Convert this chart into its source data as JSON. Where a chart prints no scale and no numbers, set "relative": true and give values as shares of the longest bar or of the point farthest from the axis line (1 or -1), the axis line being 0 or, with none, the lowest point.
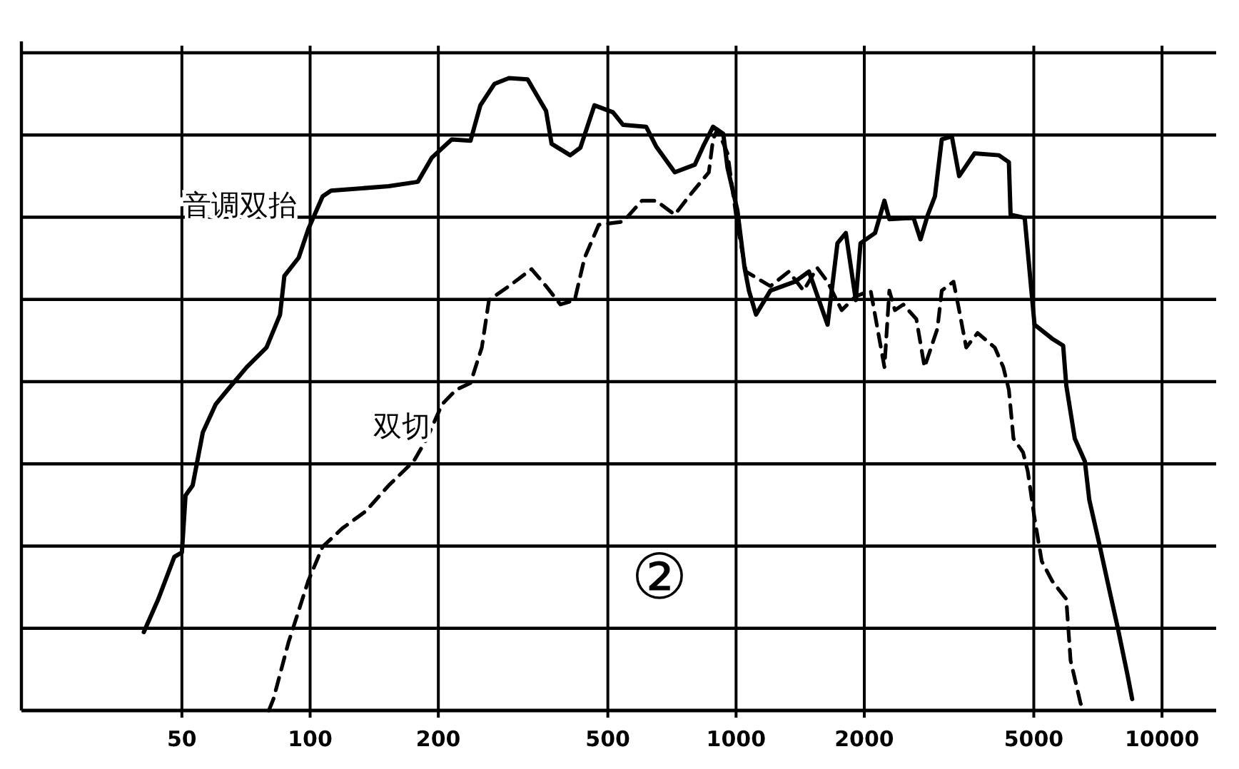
{
  "chart_data": {
    "type": "line",
    "log": "x",
    "relative": true,
    "grid": true,
    "legend": false,
    "xlim": [
      21,
      13400
    ],
    "xticks": [
      50,
      100,
      200,
      500,
      1000,
      2000,
      5000,
      10000
    ],
    "annotations": [
      "②"
    ],
    "series": [
      {
        "name": "音调双抬",
        "color": "#000000",
        "line_style": "solid",
        "x": [
          40.7,
          44,
          48,
          50,
          51,
          53,
          56,
          60,
          64,
          71,
          79,
          85,
          87,
          94,
          99,
          107,
          112,
          153,
          179,
          193,
          215,
          238,
          251,
          271,
          293,
          324,
          342,
          358,
          369,
          408,
          431,
          465,
          514,
          543,
          615,
          649,
          718,
          800,
          837,
          883,
          933,
          955,
          1007,
          1047,
          1072,
          1114,
          1204,
          1374,
          1483,
          1640,
          1730,
          1810,
          1910,
          1960,
          2120,
          2230,
          2290,
          2610,
          2710,
          2820,
          2930,
          3040,
          3210,
          3340,
          3630,
          4140,
          4370,
          4410,
          4760,
          5020,
          5520,
          5860,
          5960,
          6240,
          6590,
          6750,
          7110,
          7520,
          7870,
          8300,
          8510
        ],
        "values": [
          0.124,
          0.176,
          0.243,
          0.25,
          0.34,
          0.356,
          0.44,
          0.484,
          0.507,
          0.543,
          0.574,
          0.626,
          0.687,
          0.716,
          0.761,
          0.813,
          0.822,
          0.829,
          0.836,
          0.874,
          0.903,
          0.901,
          0.957,
          0.991,
          1.0,
          0.998,
          0.971,
          0.948,
          0.896,
          0.878,
          0.89,
          0.957,
          0.946,
          0.926,
          0.923,
          0.892,
          0.851,
          0.863,
          0.892,
          0.923,
          0.912,
          0.858,
          0.791,
          0.7,
          0.664,
          0.626,
          0.664,
          0.678,
          0.694,
          0.61,
          0.739,
          0.755,
          0.649,
          0.739,
          0.755,
          0.806,
          0.777,
          0.779,
          0.745,
          0.784,
          0.813,
          0.903,
          0.908,
          0.845,
          0.881,
          0.878,
          0.867,
          0.784,
          0.779,
          0.61,
          0.588,
          0.577,
          0.514,
          0.43,
          0.394,
          0.333,
          0.266,
          0.191,
          0.131,
          0.056,
          0.018
        ]
      },
      {
        "name": "双切",
        "color": "#000000",
        "line_style": "dashed",
        "x": [
          80,
          82,
          89,
          99,
          107,
          119,
          135,
          153,
          175,
          188,
          204,
          220,
          238,
          253,
          263,
          293,
          331,
          358,
          387,
          418,
          441,
          476,
          543,
          601,
          649,
          718,
          775,
          863,
          883,
          904,
          955,
          1007,
          1055,
          1204,
          1330,
          1440,
          1550,
          1640,
          1770,
          1910,
          2070,
          2230,
          2290,
          2360,
          2470,
          2650,
          2770,
          2970,
          3040,
          3240,
          3340,
          3470,
          3690,
          4050,
          4240,
          4370,
          4480,
          4720,
          4840,
          5020,
          5220,
          5520,
          5960,
          6100,
          6440,
          6590
        ],
        "values": [
          0,
          0.018,
          0.108,
          0.205,
          0.259,
          0.288,
          0.315,
          0.356,
          0.394,
          0.43,
          0.484,
          0.507,
          0.518,
          0.574,
          0.649,
          0.671,
          0.698,
          0.671,
          0.642,
          0.649,
          0.716,
          0.768,
          0.773,
          0.806,
          0.806,
          0.784,
          0.813,
          0.851,
          0.903,
          0.919,
          0.881,
          0.768,
          0.694,
          0.671,
          0.694,
          0.664,
          0.7,
          0.678,
          0.633,
          0.655,
          0.664,
          0.543,
          0.664,
          0.633,
          0.642,
          0.619,
          0.543,
          0.604,
          0.664,
          0.678,
          0.633,
          0.574,
          0.597,
          0.574,
          0.543,
          0.507,
          0.43,
          0.408,
          0.378,
          0.304,
          0.236,
          0.205,
          0.176,
          0.079,
          0.011,
          0
        ]
      }
    ]
  }
}
